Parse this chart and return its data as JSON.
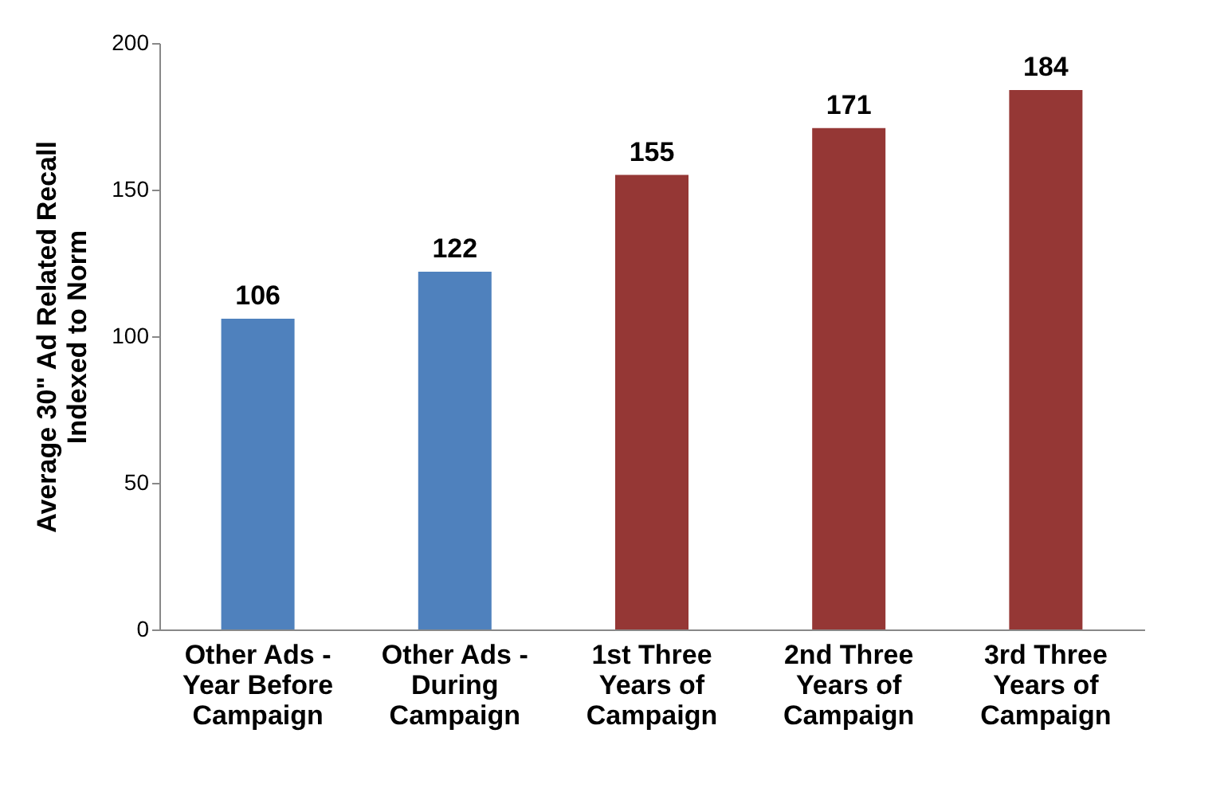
{
  "chart_data": {
    "type": "bar",
    "categories": [
      "Other Ads -\nYear Before\nCampaign",
      "Other Ads -\nDuring\nCampaign",
      "1st Three\nYears of\nCampaign",
      "2nd Three\nYears of\nCampaign",
      "3rd Three\nYears of\nCampaign"
    ],
    "values": [
      106,
      122,
      155,
      171,
      184
    ],
    "colors": [
      "#4f81bd",
      "#4f81bd",
      "#953735",
      "#953735",
      "#953735"
    ],
    "ylabel": "Average 30\" Ad Related Recall\nIndexed to Norm",
    "ylim": [
      0,
      200
    ],
    "yticks": [
      0,
      50,
      100,
      150,
      200
    ],
    "data_labels": true,
    "grid": false
  }
}
